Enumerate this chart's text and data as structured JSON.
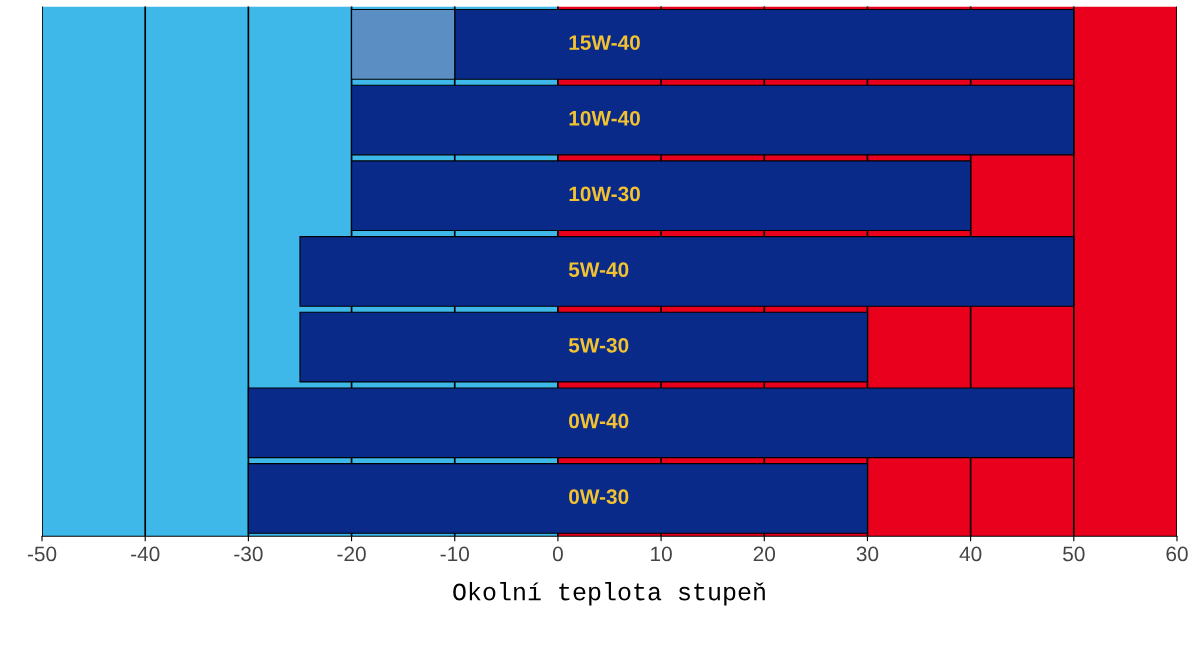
{
  "chart_data": {
    "type": "bar",
    "orientation": "horizontal",
    "xlabel": "Okolní teplota stupeň",
    "categories": [
      "15W-40",
      "10W-40",
      "10W-30",
      "5W-40",
      "5W-30",
      "0W-40",
      "0W-30"
    ],
    "series": [
      {
        "color": "#0a2a8a",
        "base": [
          -10,
          -20,
          -20,
          -25,
          -25,
          -30,
          -30
        ],
        "values": [
          60,
          70,
          60,
          75,
          55,
          80,
          60
        ]
      },
      {
        "color": "#5b8fc4",
        "base": [
          -20,
          null,
          null,
          null,
          null,
          null,
          null
        ],
        "values": [
          10,
          null,
          null,
          null,
          null,
          null,
          null
        ]
      }
    ],
    "bands": [
      {
        "axis": "x",
        "from": -50,
        "to": 0,
        "color": "#3db8e8"
      },
      {
        "axis": "x",
        "from": 0,
        "to": 60,
        "color": "#e8001c"
      }
    ],
    "xlim": [
      -50,
      60
    ],
    "xticks": [
      -50,
      -40,
      -30,
      -20,
      -10,
      0,
      10,
      20,
      30,
      40,
      50,
      60
    ],
    "grid": "x"
  }
}
